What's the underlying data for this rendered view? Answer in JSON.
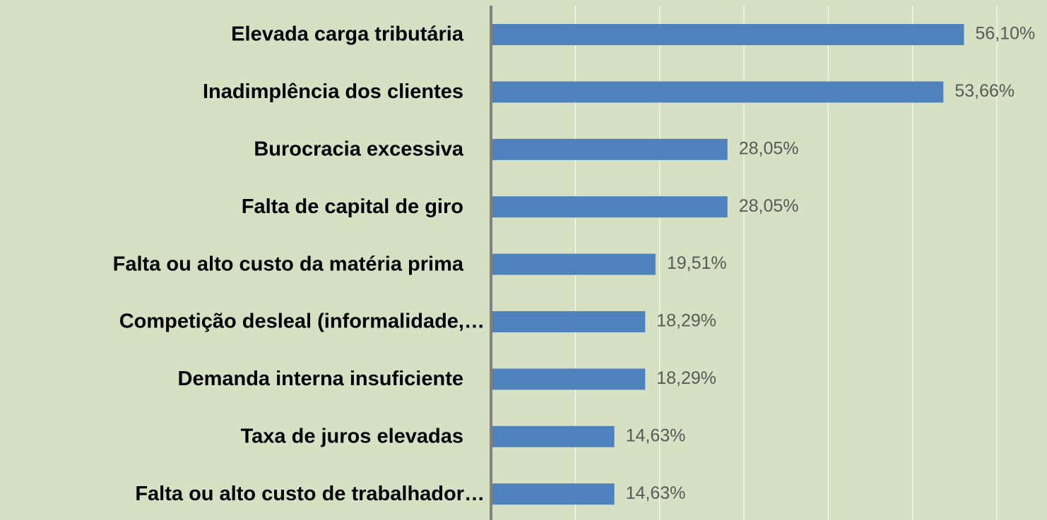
{
  "chart_data": {
    "type": "bar",
    "orientation": "horizontal",
    "categories": [
      "Elevada carga tributária",
      "Inadimplência dos clientes",
      "Burocracia excessiva",
      "Falta de capital de giro",
      "Falta ou alto custo da matéria prima",
      "Competição desleal (informalidade,…",
      "Demanda interna insuficiente",
      "Taxa de juros elevadas",
      "Falta ou alto custo de trabalhador…"
    ],
    "values": [
      56.1,
      53.66,
      28.05,
      28.05,
      19.51,
      18.29,
      18.29,
      14.63,
      14.63
    ],
    "value_labels": [
      "56,10%",
      "53,66%",
      "28,05%",
      "28,05%",
      "19,51%",
      "18,29%",
      "18,29%",
      "14,63%",
      "14,63%"
    ],
    "color": "#4f81bd",
    "xlim": [
      0,
      60
    ],
    "xticks": [
      0,
      10,
      20,
      30,
      40,
      50,
      60
    ],
    "grid": true
  }
}
